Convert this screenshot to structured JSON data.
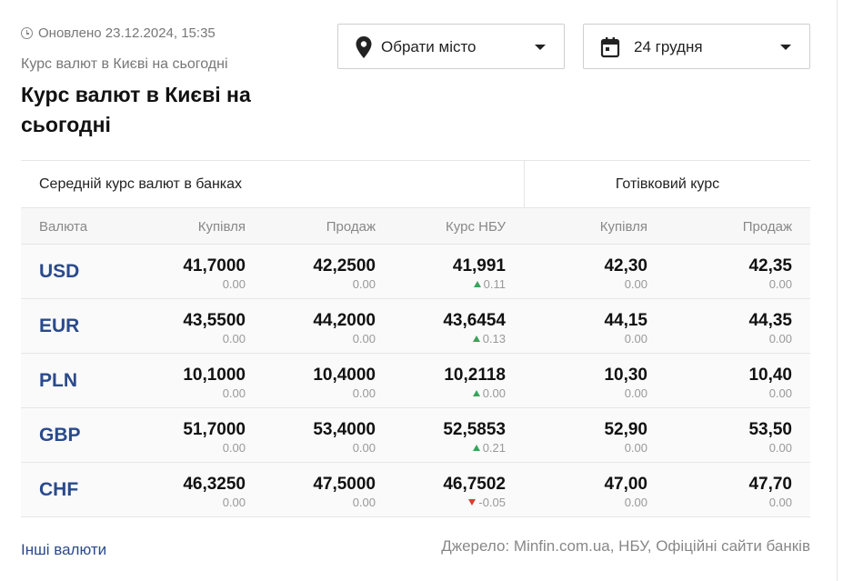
{
  "updated": "Оновлено 23.12.2024, 15:35",
  "breadcrumb": "Курс валют в Києві на сьогодні",
  "title": "Курс валют в Києві на сьогодні",
  "city_select": {
    "label": "Обрати місто",
    "icon": "location-pin-icon"
  },
  "date_select": {
    "label": "24 грудня",
    "icon": "calendar-icon"
  },
  "table": {
    "group_banks": "Середній курс валют в банках",
    "group_cash": "Готівковий курс",
    "headers": [
      "Валюта",
      "Купівля",
      "Продаж",
      "Курс НБУ",
      "Купівля",
      "Продаж"
    ],
    "rows": [
      {
        "code": "USD",
        "buy": "41,7000",
        "buy_d": "0.00",
        "sell": "42,2500",
        "sell_d": "0.00",
        "nbu": "41,991",
        "nbu_d": "0.11",
        "nbu_dir": "up",
        "cash_buy": "42,30",
        "cash_buy_d": "0.00",
        "cash_sell": "42,35",
        "cash_sell_d": "0.00"
      },
      {
        "code": "EUR",
        "buy": "43,5500",
        "buy_d": "0.00",
        "sell": "44,2000",
        "sell_d": "0.00",
        "nbu": "43,6454",
        "nbu_d": "0.13",
        "nbu_dir": "up",
        "cash_buy": "44,15",
        "cash_buy_d": "0.00",
        "cash_sell": "44,35",
        "cash_sell_d": "0.00"
      },
      {
        "code": "PLN",
        "buy": "10,1000",
        "buy_d": "0.00",
        "sell": "10,4000",
        "sell_d": "0.00",
        "nbu": "10,2118",
        "nbu_d": "0.00",
        "nbu_dir": "up",
        "cash_buy": "10,30",
        "cash_buy_d": "0.00",
        "cash_sell": "10,40",
        "cash_sell_d": "0.00"
      },
      {
        "code": "GBP",
        "buy": "51,7000",
        "buy_d": "0.00",
        "sell": "53,4000",
        "sell_d": "0.00",
        "nbu": "52,5853",
        "nbu_d": "0.21",
        "nbu_dir": "up",
        "cash_buy": "52,90",
        "cash_buy_d": "0.00",
        "cash_sell": "53,50",
        "cash_sell_d": "0.00"
      },
      {
        "code": "CHF",
        "buy": "46,3250",
        "buy_d": "0.00",
        "sell": "47,5000",
        "sell_d": "0.00",
        "nbu": "46,7502",
        "nbu_d": "-0.05",
        "nbu_dir": "down",
        "cash_buy": "47,00",
        "cash_buy_d": "0.00",
        "cash_sell": "47,70",
        "cash_sell_d": "0.00"
      }
    ]
  },
  "footer": {
    "other_link": "Інші валюти",
    "source": "Джерело: Minfin.com.ua, НБУ, Офіційні сайти банків"
  },
  "colors": {
    "accent": "#2a4a8c",
    "up": "#3aa35a",
    "down": "#e03b2f"
  }
}
